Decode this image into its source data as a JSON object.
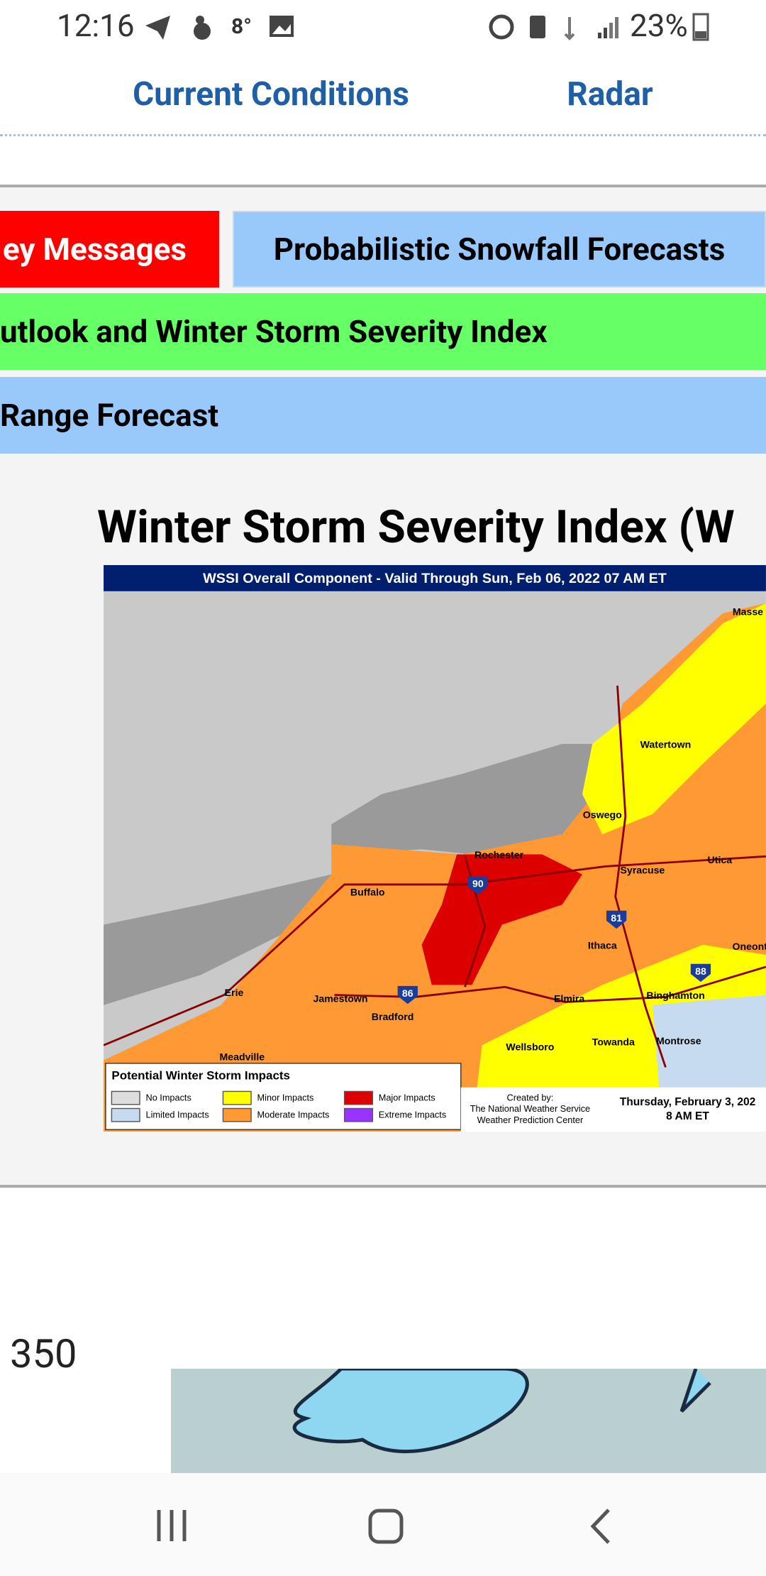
{
  "status_bar": {
    "time": "12:16",
    "temperature": "8°",
    "battery": "23%"
  },
  "nav": {
    "links": [
      "Current Conditions",
      "Radar"
    ]
  },
  "tabs": [
    "ey Messages",
    "Probabilistic Snowfall Forecasts",
    "utlook and Winter Storm Severity Index",
    "Range Forecast"
  ],
  "section": {
    "title": "Winter Storm Severity Index (W"
  },
  "map": {
    "header": "WSSI Overall Component - Valid Through Sun, Feb 06, 2022 07 AM ET",
    "cities": [
      "Masse",
      "Watertown",
      "Oswego",
      "Rochester",
      "Utica",
      "Syracuse",
      "Buffalo",
      "Ithaca",
      "Oneont",
      "Jamestown",
      "Erie",
      "Elmira",
      "Binghamton",
      "Bradford",
      "Wellsboro",
      "Towanda",
      "Montrose",
      "Meadville"
    ],
    "highways": [
      "90",
      "81",
      "86",
      "88"
    ],
    "legend": {
      "title": "Potential Winter Storm Impacts",
      "items": [
        "No Impacts",
        "Limited Impacts",
        "Minor Impacts",
        "Moderate Impacts",
        "Major Impacts",
        "Extreme Impacts"
      ]
    },
    "credits": [
      "Created by:",
      "The National Weather Service",
      "Weather Prediction Center"
    ],
    "issued": [
      "Thursday, February 3, 202",
      "8 AM ET"
    ]
  },
  "next_chart": {
    "tick": "350"
  }
}
